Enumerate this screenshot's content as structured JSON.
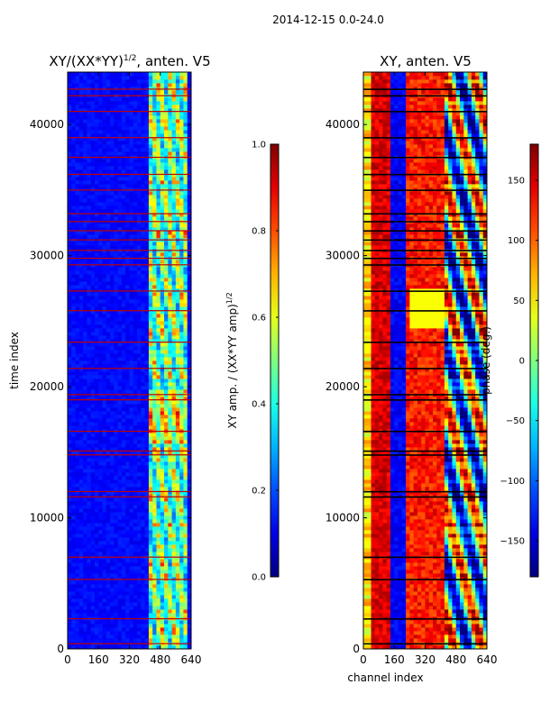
{
  "figure": {
    "suptitle": "2014-12-15 0.0-24.0"
  },
  "chart_data": [
    {
      "type": "heatmap",
      "title": "XY/(XX*YY)",
      "title_exponent": "1/2",
      "title_suffix": ", anten. V5",
      "xlabel": "",
      "ylabel": "time index",
      "xlim": [
        0,
        640
      ],
      "ylim": [
        0,
        44000
      ],
      "xticks": [
        0,
        160,
        320,
        480,
        640
      ],
      "yticks": [
        0,
        10000,
        20000,
        30000,
        40000
      ],
      "colormap": "jet",
      "colorbar": {
        "label": "XY amp. / (XX*YY amp)",
        "label_exponent": "1/2",
        "range": [
          0.0,
          1.0
        ],
        "ticks": [
          "0.0",
          "0.2",
          "0.4",
          "0.6",
          "0.8",
          "1.0"
        ]
      }
    },
    {
      "type": "heatmap",
      "title": "XY, anten. V5",
      "xlabel": "channel index",
      "ylabel": "",
      "xlim": [
        0,
        640
      ],
      "ylim": [
        0,
        44000
      ],
      "xticks": [
        0,
        160,
        320,
        480,
        640
      ],
      "yticks": [
        0,
        10000,
        20000,
        30000,
        40000
      ],
      "colormap": "jet",
      "colorbar": {
        "label": "phase (deg.)",
        "range": [
          -180,
          180
        ],
        "ticks": [
          "−150",
          "−100",
          "−50",
          "0",
          "50",
          "100",
          "150"
        ]
      }
    }
  ]
}
